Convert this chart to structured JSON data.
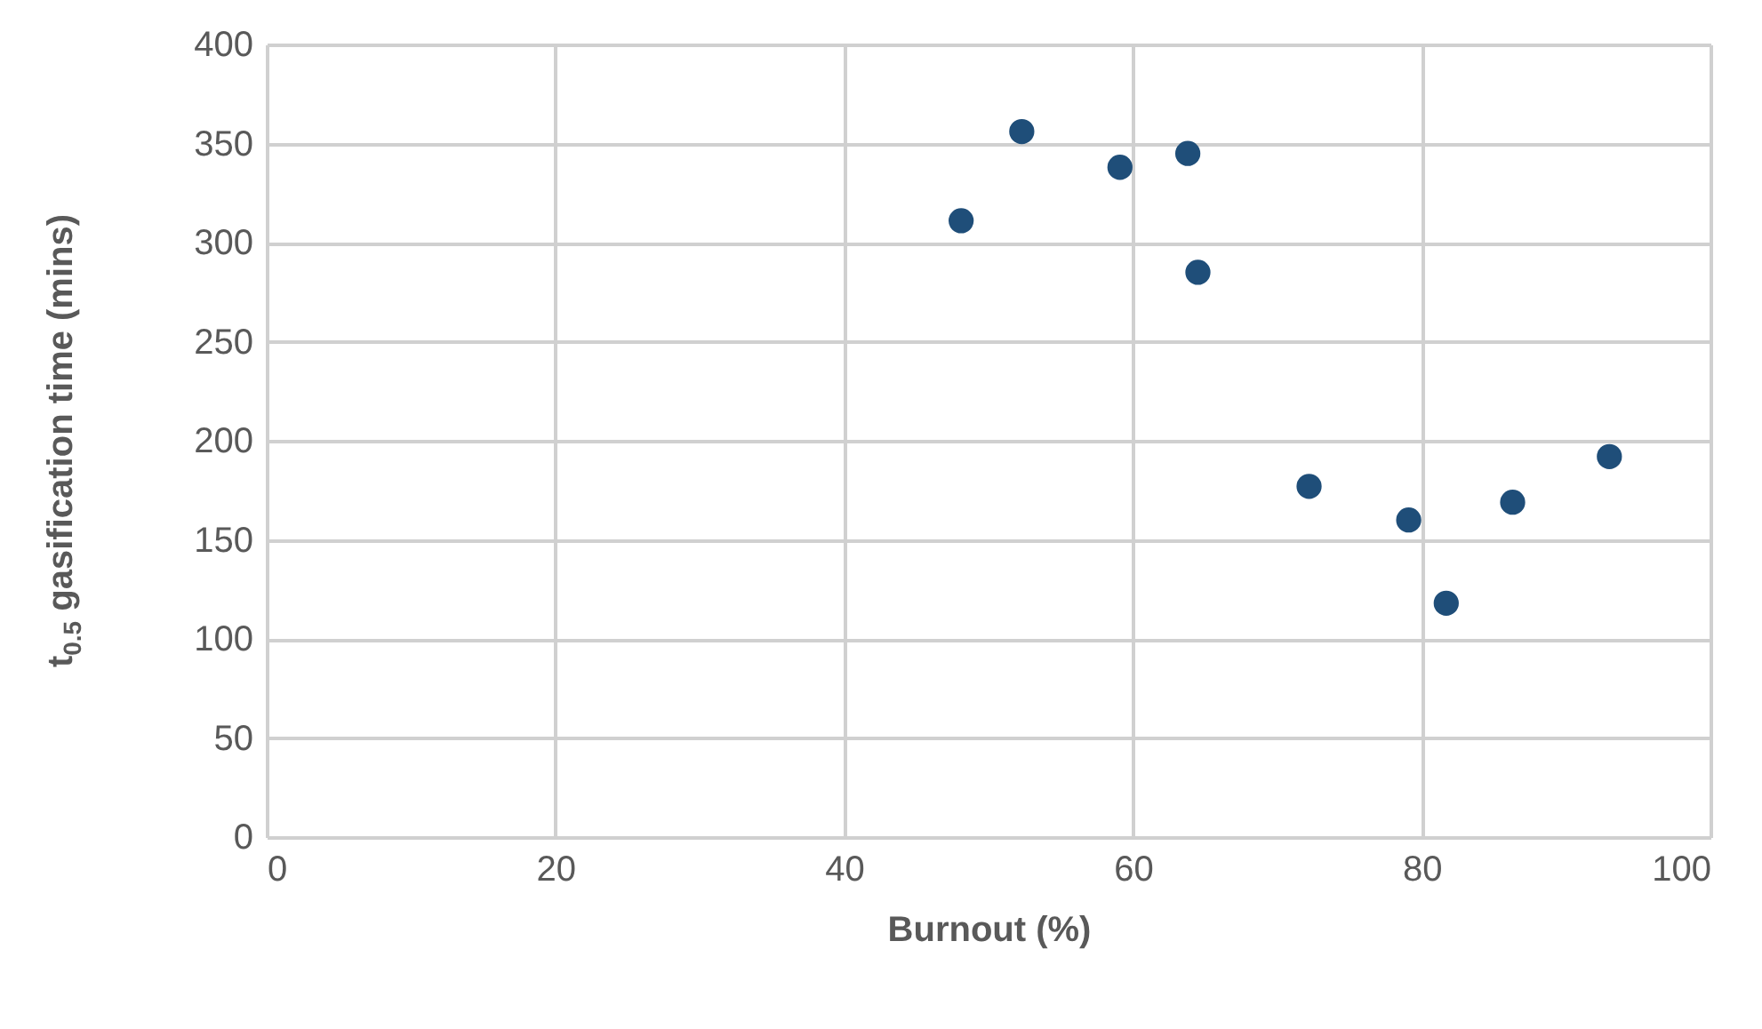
{
  "chart_data": {
    "type": "scatter",
    "xlabel": "Burnout (%)",
    "ylabel": "t$_{0.5}$ gasification time (mins)",
    "x": [
      48.1,
      52.3,
      59.1,
      63.8,
      64.5,
      72.2,
      79.1,
      81.7,
      86.3,
      93.0
    ],
    "series": [
      {
        "color": "#1f4e79",
        "values": [
          311,
          356,
          338,
          345,
          285,
          177,
          160,
          118,
          169,
          192
        ]
      }
    ],
    "xlim": [
      0,
      100
    ],
    "xticks": [
      0,
      20,
      40,
      60,
      80,
      100
    ],
    "ylim": [
      0,
      400
    ],
    "yticks": [
      0,
      50,
      100,
      150,
      200,
      250,
      300,
      350,
      400
    ],
    "grid": true,
    "marker": "circle"
  }
}
